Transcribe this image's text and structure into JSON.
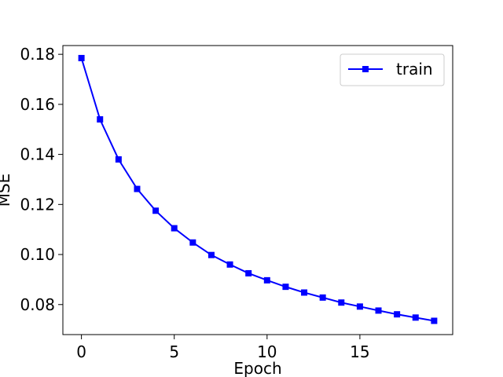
{
  "chart_data": {
    "type": "line",
    "title": "",
    "xlabel": "Epoch",
    "ylabel": "MSE",
    "xlim": [
      -1,
      20
    ],
    "ylim": [
      0.068,
      0.1835
    ],
    "xticks": [
      0,
      5,
      10,
      15
    ],
    "xtick_labels": [
      "0",
      "5",
      "10",
      "15"
    ],
    "yticks": [
      0.08,
      0.1,
      0.12,
      0.14,
      0.16,
      0.18
    ],
    "ytick_labels": [
      "0.08",
      "0.10",
      "0.12",
      "0.14",
      "0.16",
      "0.18"
    ],
    "grid": false,
    "legend": {
      "position": "upper right"
    },
    "series": [
      {
        "name": "train",
        "color": "#0000ff",
        "marker": "square",
        "x": [
          0,
          1,
          2,
          3,
          4,
          5,
          6,
          7,
          8,
          9,
          10,
          11,
          12,
          13,
          14,
          15,
          16,
          17,
          18,
          19
        ],
        "values": [
          0.1785,
          0.154,
          0.138,
          0.1262,
          0.1175,
          0.1105,
          0.1048,
          0.0998,
          0.096,
          0.0925,
          0.0897,
          0.0871,
          0.0848,
          0.0828,
          0.0808,
          0.0792,
          0.0776,
          0.0761,
          0.0748,
          0.0735
        ]
      }
    ]
  }
}
